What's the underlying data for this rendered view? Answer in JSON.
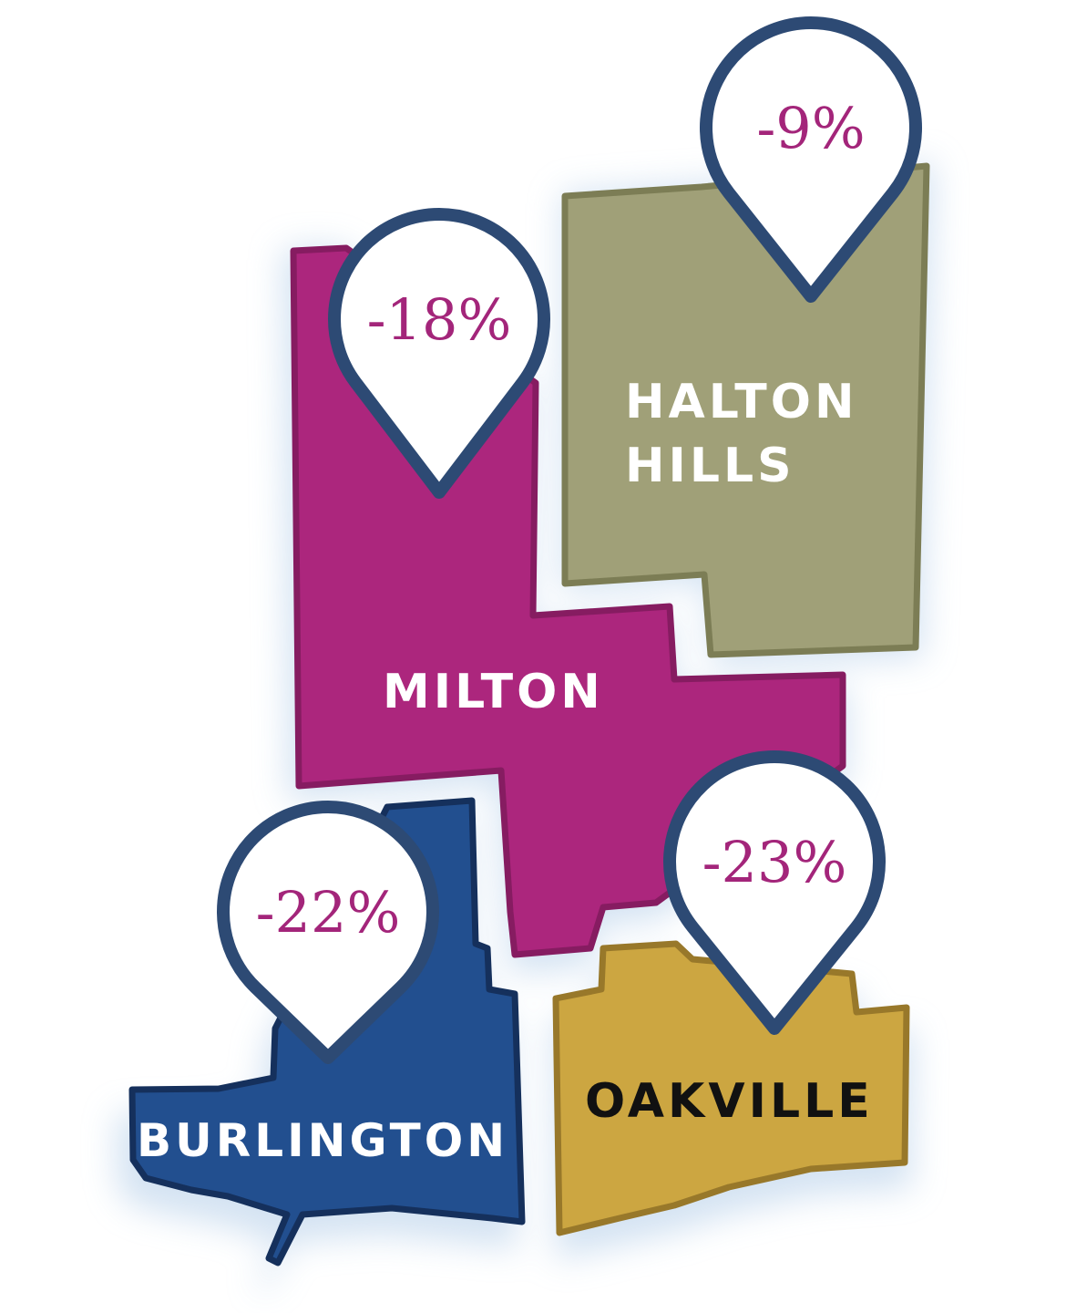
{
  "colors": {
    "milton": "#AC267D",
    "milton_outline": "#861C61",
    "halton_hills": "#A0A078",
    "halton_hills_outline": "#7C7D55",
    "burlington": "#224F8F",
    "burlington_outline": "#15305C",
    "oakville": "#CCA641",
    "oakville_outline": "#98782A",
    "pin_outline": "#2D4A74",
    "pin_fill": "#FFFFFF",
    "pin_text": "#A3257A",
    "shadow": "#C9DCEF"
  },
  "regions": {
    "halton_hills": {
      "label_line1": "HALTON",
      "label_line2": "HILLS",
      "change": "-9%"
    },
    "milton": {
      "label": "MILTON",
      "change": "-18%"
    },
    "burlington": {
      "label": "BURLINGTON",
      "change": "-22%"
    },
    "oakville": {
      "label": "OAKVILLE",
      "change": "-23%"
    }
  }
}
